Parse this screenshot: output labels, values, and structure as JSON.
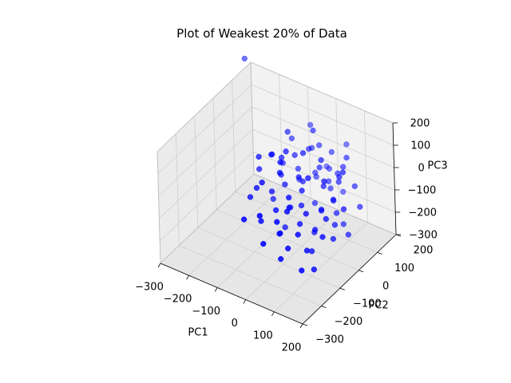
{
  "chart_data": {
    "type": "scatter",
    "projection": "3d",
    "title": "Plot of Weakest 20% of Data",
    "xlabel": "PC1",
    "ylabel": "PC2",
    "zlabel": "PC3",
    "xlim": [
      -300,
      200
    ],
    "ylim": [
      -300,
      200
    ],
    "zlim": [
      -300,
      200
    ],
    "xticks": [
      "−300",
      "−200",
      "−100",
      "0",
      "100",
      "200"
    ],
    "yticks": [
      "−300",
      "−200",
      "−100",
      "0",
      "100",
      "200"
    ],
    "zticks": [
      "−300",
      "−200",
      "−100",
      "0",
      "100",
      "200"
    ],
    "grid": true,
    "marker_color": "#0000ff",
    "pane_color": "#f2f2f2",
    "grid_color": "#d0d0d0",
    "series": [
      {
        "points": [
          [
            -260,
            110,
            310
          ],
          [
            20,
            120,
            -95
          ],
          [
            -20,
            110,
            -70
          ],
          [
            10,
            140,
            -60
          ],
          [
            40,
            100,
            -100
          ],
          [
            -30,
            130,
            -110
          ],
          [
            70,
            70,
            -115
          ],
          [
            -10,
            30,
            -40
          ],
          [
            60,
            20,
            -120
          ],
          [
            -60,
            80,
            -50
          ],
          [
            100,
            40,
            -130
          ],
          [
            -40,
            -20,
            -30
          ],
          [
            30,
            -40,
            -70
          ],
          [
            -80,
            20,
            -40
          ],
          [
            80,
            -10,
            -90
          ],
          [
            0,
            -60,
            -80
          ],
          [
            -100,
            60,
            -30
          ],
          [
            120,
            0,
            -140
          ],
          [
            50,
            -80,
            -110
          ],
          [
            -20,
            -100,
            -70
          ],
          [
            90,
            -60,
            -130
          ],
          [
            -60,
            -60,
            -40
          ],
          [
            140,
            -40,
            -160
          ],
          [
            20,
            -140,
            -120
          ],
          [
            -40,
            -150,
            -90
          ],
          [
            100,
            -120,
            -170
          ],
          [
            -100,
            -80,
            -30
          ],
          [
            60,
            -160,
            -150
          ],
          [
            0,
            -200,
            -130
          ],
          [
            -80,
            -180,
            -80
          ],
          [
            120,
            -180,
            -200
          ],
          [
            30,
            60,
            20
          ],
          [
            -50,
            50,
            40
          ],
          [
            70,
            20,
            -10
          ],
          [
            10,
            -20,
            30
          ],
          [
            -20,
            80,
            60
          ],
          [
            90,
            70,
            -20
          ],
          [
            -70,
            10,
            50
          ],
          [
            40,
            -50,
            10
          ],
          [
            110,
            10,
            -40
          ],
          [
            -10,
            120,
            50
          ],
          [
            60,
            110,
            -30
          ],
          [
            -90,
            -10,
            70
          ],
          [
            20,
            -90,
            0
          ],
          [
            80,
            -90,
            -40
          ],
          [
            -30,
            -60,
            60
          ],
          [
            130,
            -60,
            -60
          ],
          [
            -60,
            -110,
            40
          ],
          [
            40,
            -130,
            -20
          ],
          [
            150,
            -110,
            -90
          ],
          [
            -110,
            -50,
            80
          ],
          [
            0,
            20,
            100
          ],
          [
            50,
            40,
            80
          ],
          [
            -40,
            -10,
            110
          ],
          [
            100,
            -20,
            60
          ],
          [
            -80,
            60,
            120
          ],
          [
            70,
            -60,
            90
          ],
          [
            -20,
            -70,
            120
          ],
          [
            120,
            30,
            50
          ],
          [
            20,
            140,
            20
          ],
          [
            -100,
            110,
            40
          ],
          [
            80,
            110,
            10
          ],
          [
            -50,
            140,
            0
          ],
          [
            140,
            80,
            -20
          ],
          [
            -120,
            30,
            20
          ],
          [
            160,
            -10,
            -40
          ],
          [
            30,
            -170,
            -40
          ],
          [
            -10,
            -200,
            -10
          ],
          [
            90,
            -150,
            -80
          ],
          [
            -130,
            -20,
            -10
          ],
          [
            170,
            60,
            -80
          ],
          [
            10,
            60,
            -150
          ],
          [
            -50,
            20,
            -170
          ],
          [
            60,
            -20,
            -190
          ],
          [
            -10,
            -100,
            -170
          ],
          [
            90,
            -80,
            -210
          ],
          [
            -90,
            -10,
            -130
          ],
          [
            40,
            -170,
            -200
          ],
          [
            130,
            -130,
            -230
          ],
          [
            -30,
            -40,
            -200
          ],
          [
            110,
            60,
            -190
          ],
          [
            -70,
            100,
            -120
          ],
          [
            160,
            10,
            -170
          ],
          [
            -20,
            170,
            -90
          ],
          [
            50,
            150,
            -150
          ],
          [
            -110,
            -100,
            -60
          ],
          [
            100,
            100,
            70
          ],
          [
            -10,
            90,
            140
          ],
          [
            60,
            160,
            60
          ],
          [
            -60,
            150,
            90
          ],
          [
            140,
            20,
            90
          ]
        ]
      }
    ]
  }
}
